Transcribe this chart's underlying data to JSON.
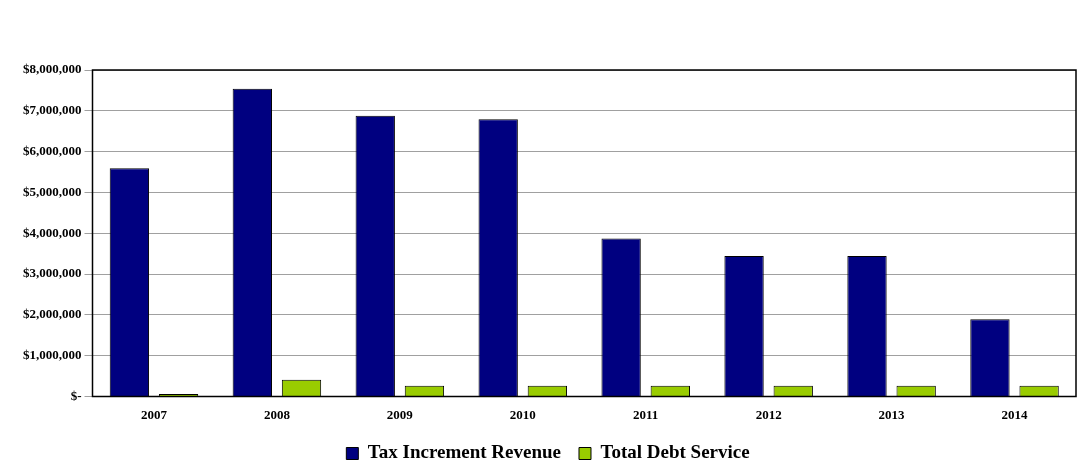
{
  "chart_data": {
    "type": "bar",
    "categories": [
      "2007",
      "2008",
      "2009",
      "2010",
      "2011",
      "2012",
      "2013",
      "2014"
    ],
    "series": [
      {
        "name": "Tax Increment Revenue",
        "color": "#000080",
        "values": [
          5590000,
          7540000,
          6880000,
          6790000,
          3870000,
          3440000,
          3440000,
          1890000
        ]
      },
      {
        "name": "Total Debt Service",
        "color": "#99cc00",
        "values": [
          60000,
          410000,
          260000,
          260000,
          260000,
          260000,
          260000,
          260000
        ]
      }
    ],
    "ylim": [
      0,
      8000000
    ],
    "yticks": [
      {
        "value": 0,
        "label": "$-"
      },
      {
        "value": 1000000,
        "label": "$1,000,000"
      },
      {
        "value": 2000000,
        "label": "$2,000,000"
      },
      {
        "value": 3000000,
        "label": "$3,000,000"
      },
      {
        "value": 4000000,
        "label": "$4,000,000"
      },
      {
        "value": 5000000,
        "label": "$5,000,000"
      },
      {
        "value": 6000000,
        "label": "$6,000,000"
      },
      {
        "value": 7000000,
        "label": "$7,000,000"
      },
      {
        "value": 8000000,
        "label": "$8,000,000"
      }
    ],
    "grid": "y",
    "legend": "bottom"
  }
}
